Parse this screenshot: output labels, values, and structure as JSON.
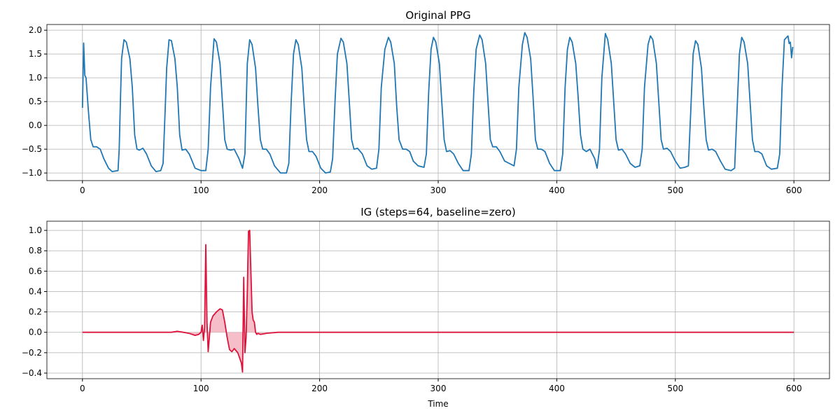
{
  "chart_data": [
    {
      "type": "line",
      "title": "Original PPG",
      "color": "#1f77b4",
      "grid": true,
      "xlim": [
        -30,
        630
      ],
      "ylim": [
        -1.16,
        2.12
      ],
      "xticks": [
        0,
        100,
        200,
        300,
        400,
        500,
        600
      ],
      "yticks": [
        {
          "value": -1,
          "label": "−1.0"
        },
        {
          "value": -0.5,
          "label": "−0.5"
        },
        {
          "value": 0,
          "label": "0.0"
        },
        {
          "value": 0.5,
          "label": "0.5"
        },
        {
          "value": 1,
          "label": "1.0"
        },
        {
          "value": 1.5,
          "label": "1.5"
        },
        {
          "value": 2,
          "label": "2.0"
        }
      ],
      "x": [
        0,
        1,
        2,
        3,
        5,
        7,
        9,
        12,
        15,
        18,
        22,
        25,
        30,
        31,
        32,
        33,
        35,
        37,
        40,
        42,
        44,
        46,
        48,
        51,
        54,
        58,
        62,
        66,
        68,
        70,
        71,
        73,
        75,
        78,
        80,
        82,
        84,
        87,
        90,
        95,
        100,
        104,
        106,
        108,
        111,
        113,
        116,
        118,
        120,
        122,
        125,
        128,
        132,
        135,
        137,
        139,
        141,
        143,
        146,
        148,
        150,
        152,
        155,
        158,
        162,
        167,
        172,
        174,
        176,
        178,
        180,
        182,
        185,
        187,
        189,
        191,
        194,
        197,
        201,
        205,
        209,
        211,
        213,
        215,
        218,
        220,
        223,
        225,
        227,
        229,
        232,
        236,
        240,
        244,
        248,
        250,
        252,
        255,
        258,
        260,
        263,
        265,
        267,
        270,
        273,
        276,
        279,
        283,
        288,
        290,
        292,
        294,
        296,
        298,
        301,
        303,
        305,
        307,
        310,
        313,
        317,
        321,
        326,
        328,
        330,
        332,
        335,
        337,
        340,
        342,
        344,
        346,
        349,
        352,
        356,
        360,
        364,
        366,
        368,
        371,
        373,
        375,
        378,
        380,
        382,
        384,
        387,
        390,
        394,
        398,
        403,
        405,
        407,
        409,
        411,
        413,
        416,
        418,
        420,
        422,
        425,
        428,
        432,
        434,
        436,
        438,
        441,
        443,
        446,
        448,
        450,
        452,
        455,
        458,
        462,
        466,
        470,
        472,
        474,
        477,
        479,
        481,
        484,
        486,
        488,
        490,
        493,
        496,
        500,
        504,
        508,
        511,
        513,
        515,
        517,
        519,
        522,
        524,
        526,
        528,
        531,
        534,
        538,
        542,
        547,
        550,
        552,
        554,
        556,
        558,
        561,
        563,
        565,
        567,
        570,
        573,
        577,
        581,
        586,
        588,
        590,
        592,
        595,
        596,
        597,
        598,
        599
      ],
      "values": [
        0.37,
        1.73,
        1.05,
        1.0,
        0.3,
        -0.3,
        -0.45,
        -0.45,
        -0.5,
        -0.7,
        -0.9,
        -0.97,
        -0.95,
        -0.5,
        0.5,
        1.4,
        1.8,
        1.75,
        1.4,
        0.8,
        -0.2,
        -0.5,
        -0.52,
        -0.48,
        -0.6,
        -0.85,
        -0.97,
        -0.95,
        -0.8,
        0.5,
        1.2,
        1.8,
        1.78,
        1.4,
        0.8,
        -0.2,
        -0.52,
        -0.5,
        -0.6,
        -0.9,
        -0.95,
        -0.95,
        -0.5,
        0.8,
        1.82,
        1.75,
        1.3,
        0.5,
        -0.3,
        -0.5,
        -0.52,
        -0.5,
        -0.7,
        -0.9,
        -0.6,
        1.3,
        1.8,
        1.7,
        1.2,
        0.4,
        -0.3,
        -0.5,
        -0.5,
        -0.6,
        -0.85,
        -1.0,
        -1.0,
        -0.8,
        0.5,
        1.5,
        1.8,
        1.7,
        1.2,
        0.4,
        -0.3,
        -0.55,
        -0.55,
        -0.65,
        -0.9,
        -1.0,
        -0.98,
        -0.7,
        0.5,
        1.5,
        1.83,
        1.75,
        1.3,
        0.5,
        -0.3,
        -0.5,
        -0.48,
        -0.6,
        -0.85,
        -0.92,
        -0.9,
        -0.5,
        0.8,
        1.6,
        1.85,
        1.75,
        1.3,
        0.4,
        -0.3,
        -0.5,
        -0.5,
        -0.55,
        -0.75,
        -0.85,
        -0.88,
        -0.6,
        0.7,
        1.6,
        1.85,
        1.75,
        1.3,
        0.5,
        -0.3,
        -0.55,
        -0.53,
        -0.6,
        -0.8,
        -0.95,
        -0.95,
        -0.6,
        0.7,
        1.6,
        1.9,
        1.8,
        1.3,
        0.5,
        -0.3,
        -0.45,
        -0.45,
        -0.55,
        -0.75,
        -0.8,
        -0.85,
        -0.5,
        0.8,
        1.7,
        1.95,
        1.85,
        1.4,
        0.6,
        -0.3,
        -0.5,
        -0.5,
        -0.55,
        -0.8,
        -0.95,
        -0.95,
        -0.6,
        0.8,
        1.6,
        1.85,
        1.75,
        1.3,
        0.6,
        -0.2,
        -0.5,
        -0.55,
        -0.5,
        -0.7,
        -0.9,
        -0.5,
        1.0,
        1.93,
        1.8,
        1.3,
        0.5,
        -0.3,
        -0.52,
        -0.5,
        -0.6,
        -0.8,
        -0.88,
        -0.85,
        -0.5,
        0.8,
        1.7,
        1.88,
        1.8,
        1.3,
        0.5,
        -0.3,
        -0.5,
        -0.48,
        -0.55,
        -0.75,
        -0.9,
        -0.88,
        -0.85,
        0.3,
        1.5,
        1.78,
        1.7,
        1.2,
        0.4,
        -0.3,
        -0.52,
        -0.5,
        -0.55,
        -0.75,
        -0.92,
        -0.95,
        -0.9,
        0.3,
        1.5,
        1.85,
        1.75,
        1.3,
        0.5,
        -0.3,
        -0.55,
        -0.55,
        -0.6,
        -0.85,
        -0.92,
        -0.9,
        -0.6,
        0.8,
        1.8,
        1.88,
        1.72,
        1.75,
        1.42,
        1.65
      ]
    },
    {
      "type": "line",
      "title": "IG (steps=64, baseline=zero)",
      "xlabel": "Time",
      "color": "#dc143c",
      "fill_color": "#f4b3c0",
      "grid": true,
      "xlim": [
        -30,
        630
      ],
      "ylim": [
        -0.455,
        1.09
      ],
      "xticks": [
        0,
        100,
        200,
        300,
        400,
        500,
        600
      ],
      "yticks": [
        {
          "value": -0.4,
          "label": "−0.4"
        },
        {
          "value": -0.2,
          "label": "−0.2"
        },
        {
          "value": 0,
          "label": "0.0"
        },
        {
          "value": 0.2,
          "label": "0.2"
        },
        {
          "value": 0.4,
          "label": "0.4"
        },
        {
          "value": 0.6,
          "label": "0.6"
        },
        {
          "value": 0.8,
          "label": "0.8"
        },
        {
          "value": 1,
          "label": "1.0"
        }
      ],
      "x": [
        0,
        75,
        80,
        85,
        90,
        95,
        98,
        100,
        101,
        102,
        103,
        104,
        105,
        106,
        107,
        108,
        110,
        113,
        116,
        118,
        120,
        122,
        124,
        126,
        128,
        131,
        134,
        135,
        136,
        137,
        138,
        139,
        140,
        141,
        142,
        143,
        144,
        145,
        146,
        147,
        148,
        150,
        155,
        165,
        600
      ],
      "values": [
        0,
        0,
        0.01,
        0,
        -0.01,
        -0.03,
        -0.02,
        0,
        0.07,
        -0.08,
        0.05,
        0.86,
        0.1,
        -0.19,
        -0.05,
        0.1,
        0.16,
        0.2,
        0.23,
        0.22,
        0.1,
        -0.05,
        -0.17,
        -0.19,
        -0.16,
        -0.2,
        -0.3,
        -0.39,
        0.54,
        -0.2,
        -0.05,
        0.4,
        0.99,
        1.0,
        0.6,
        0.2,
        0.12,
        0.1,
        0,
        -0.02,
        -0.01,
        -0.02,
        -0.01,
        0,
        0
      ]
    }
  ]
}
